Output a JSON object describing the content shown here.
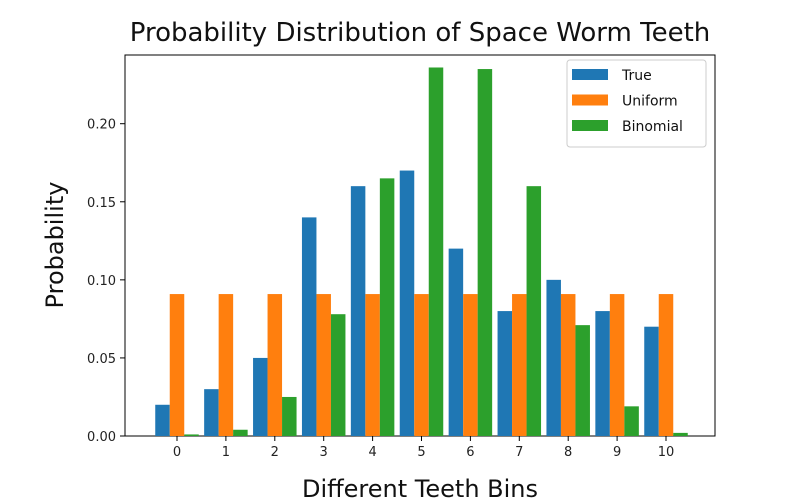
{
  "chart_data": {
    "type": "bar",
    "title": "Probability Distribution of Space Worm Teeth",
    "xlabel": "Different Teeth Bins",
    "ylabel": "Probability",
    "categories": [
      "0",
      "1",
      "2",
      "3",
      "4",
      "5",
      "6",
      "7",
      "8",
      "9",
      "10"
    ],
    "ylim": [
      0,
      0.244
    ],
    "yticks": [
      "0.00",
      "0.05",
      "0.10",
      "0.15",
      "0.20"
    ],
    "ytick_values": [
      0,
      0.05,
      0.1,
      0.15,
      0.2
    ],
    "grid": false,
    "legend_position": "top-right",
    "series": [
      {
        "name": "True",
        "color": "#1f77b4",
        "values": [
          0.02,
          0.03,
          0.05,
          0.14,
          0.16,
          0.17,
          0.12,
          0.08,
          0.1,
          0.08,
          0.07
        ]
      },
      {
        "name": "Uniform",
        "color": "#ff7f0e",
        "values": [
          0.0909,
          0.0909,
          0.0909,
          0.0909,
          0.0909,
          0.0909,
          0.0909,
          0.0909,
          0.0909,
          0.0909,
          0.0909
        ]
      },
      {
        "name": "Binomial",
        "color": "#2ca02c",
        "values": [
          0.001,
          0.004,
          0.025,
          0.078,
          0.165,
          0.236,
          0.235,
          0.16,
          0.071,
          0.019,
          0.002
        ]
      }
    ]
  }
}
